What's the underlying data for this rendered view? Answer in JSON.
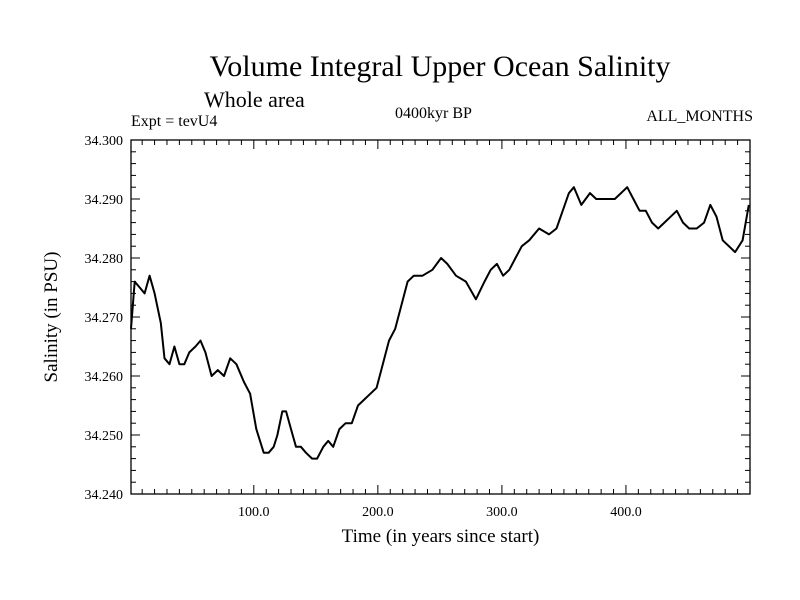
{
  "header": {
    "title": "Volume Integral Upper Ocean Salinity",
    "subtitle": "Whole area",
    "experiment": "Expt = tevU4",
    "epoch": "0400kyr BP",
    "months": "ALL_MONTHS"
  },
  "chart_data": {
    "type": "line",
    "title": "Volume Integral Upper Ocean Salinity",
    "subtitle": "Whole area",
    "xlabel": "Time (in years since start)",
    "ylabel": "Salinity (in PSU)",
    "xlim": [
      1,
      500
    ],
    "ylim": [
      34.24,
      34.3
    ],
    "x_ticks": [
      100,
      200,
      300,
      400
    ],
    "x_tick_labels": [
      "100.0",
      "200.0",
      "300.0",
      "400.0"
    ],
    "y_ticks": [
      34.24,
      34.25,
      34.26,
      34.27,
      34.28,
      34.29,
      34.3
    ],
    "y_tick_labels": [
      "34.240",
      "34.250",
      "34.260",
      "34.270",
      "34.280",
      "34.290",
      "34.300"
    ],
    "grid": false,
    "line_color": "#000000",
    "series": [
      {
        "x": [
          1,
          4,
          8,
          12,
          16,
          20,
          25,
          28,
          32,
          36,
          40,
          44,
          48,
          53,
          57,
          61,
          66,
          71,
          76,
          81,
          86,
          92,
          97,
          102,
          108,
          112,
          116,
          119,
          123,
          126,
          130,
          134,
          138,
          142,
          147,
          151,
          156,
          160,
          164,
          169,
          174,
          179,
          184,
          189,
          194,
          199,
          204,
          209,
          214,
          219,
          224,
          229,
          236,
          244,
          251,
          256,
          263,
          271,
          279,
          286,
          291,
          296,
          301,
          306,
          311,
          316,
          322,
          330,
          338,
          344,
          349,
          354,
          358,
          364,
          371,
          376,
          381,
          386,
          391,
          396,
          401,
          406,
          411,
          416,
          421,
          426,
          431,
          436,
          441,
          446,
          451,
          457,
          463,
          468,
          473,
          478,
          483,
          488,
          494,
          499
        ],
        "y": [
          34.268,
          34.276,
          34.275,
          34.274,
          34.277,
          34.274,
          34.269,
          34.263,
          34.262,
          34.265,
          34.262,
          34.262,
          34.264,
          34.265,
          34.266,
          34.264,
          34.26,
          34.261,
          34.26,
          34.263,
          34.262,
          34.259,
          34.257,
          34.251,
          34.247,
          34.247,
          34.248,
          34.25,
          34.254,
          34.254,
          34.251,
          34.248,
          34.248,
          34.247,
          34.246,
          34.246,
          34.248,
          34.249,
          34.248,
          34.251,
          34.252,
          34.252,
          34.255,
          34.256,
          34.257,
          34.258,
          34.262,
          34.266,
          34.268,
          34.272,
          34.276,
          34.277,
          34.277,
          34.278,
          34.28,
          34.279,
          34.277,
          34.276,
          34.273,
          34.276,
          34.278,
          34.279,
          34.277,
          34.278,
          34.28,
          34.282,
          34.283,
          34.285,
          34.284,
          34.285,
          34.288,
          34.291,
          34.292,
          34.289,
          34.291,
          34.29,
          34.29,
          34.29,
          34.29,
          34.291,
          34.292,
          34.29,
          34.288,
          34.288,
          34.286,
          34.285,
          34.286,
          34.287,
          34.288,
          34.286,
          34.285,
          34.285,
          34.286,
          34.289,
          34.287,
          34.283,
          34.282,
          34.281,
          34.283,
          34.289
        ]
      }
    ]
  }
}
